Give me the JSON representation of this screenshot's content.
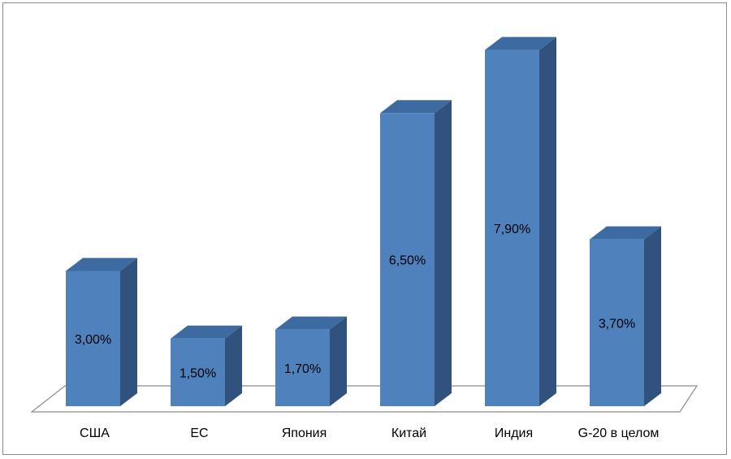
{
  "chart_data": {
    "type": "bar",
    "categories": [
      "США",
      "ЕС",
      "Япония",
      "Китай",
      "Индия",
      "G-20 в целом"
    ],
    "values": [
      3.0,
      1.5,
      1.7,
      6.5,
      7.9,
      3.7
    ],
    "value_labels": [
      "3,00%",
      "1,50%",
      "1,70%",
      "6,50%",
      "7,90%",
      "3,70%"
    ],
    "ylim": [
      0,
      8
    ],
    "grid": false,
    "style": "3d-column"
  },
  "colors": {
    "bar_front": "#4f81bd",
    "bar_top": "#3d6aa0",
    "bar_side": "#31527d",
    "floor_stroke": "#8c8c8c"
  }
}
